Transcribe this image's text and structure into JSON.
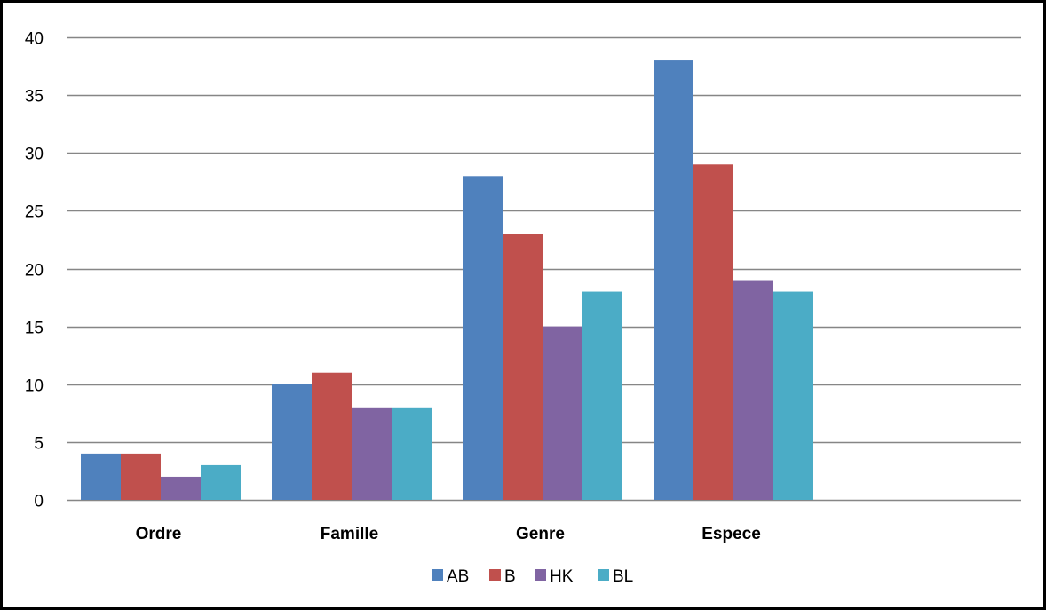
{
  "chart_data": {
    "type": "bar",
    "title": "",
    "xlabel": "",
    "ylabel": "",
    "categories": [
      "Ordre",
      "Famille",
      "Genre",
      "Espece"
    ],
    "series": [
      {
        "name": "AB",
        "color": "#4F81BD",
        "values": [
          4,
          10,
          28,
          38
        ]
      },
      {
        "name": "B",
        "color": "#C0504D",
        "values": [
          4,
          11,
          23,
          29
        ]
      },
      {
        "name": "HK",
        "color": "#8064A2",
        "values": [
          2,
          8,
          15,
          19
        ]
      },
      {
        "name": "BL",
        "color": "#4BACC6",
        "values": [
          3,
          8,
          18,
          18
        ]
      }
    ],
    "ylim": [
      0,
      40
    ],
    "yticks": [
      0,
      5,
      10,
      15,
      20,
      25,
      30,
      35,
      40
    ],
    "grid": true,
    "legend_position": "bottom"
  }
}
